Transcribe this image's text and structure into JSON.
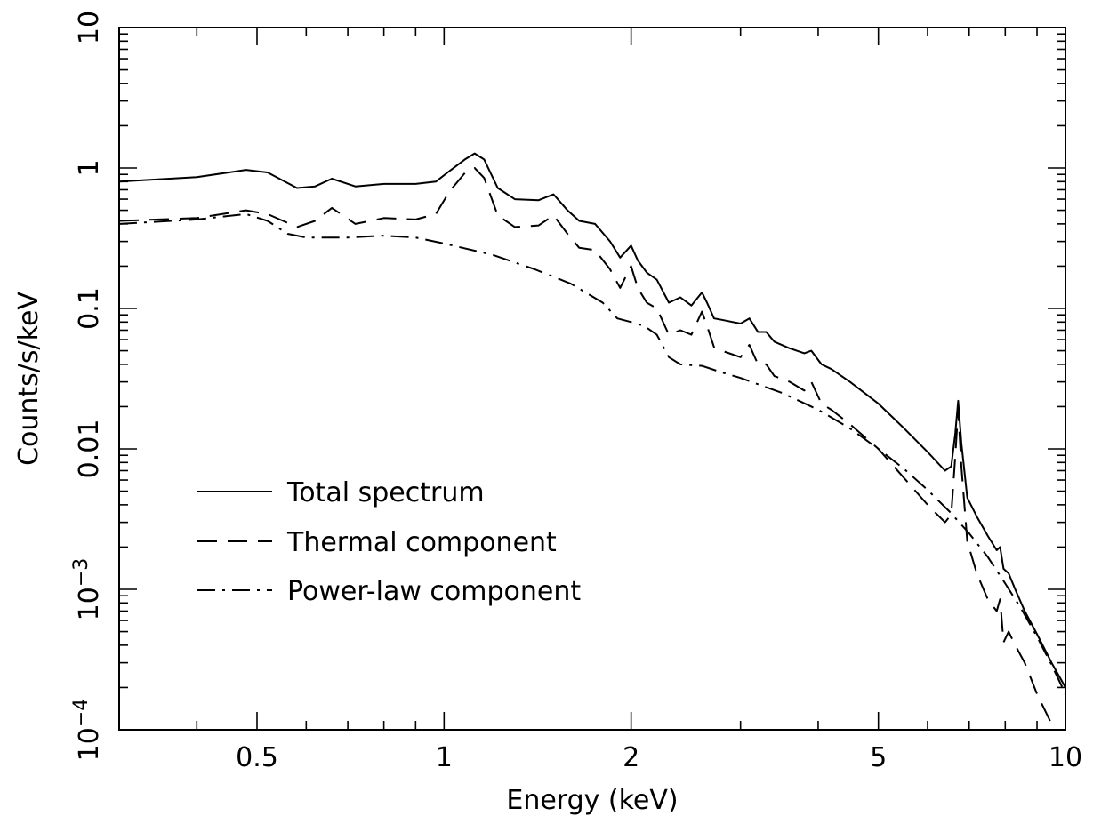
{
  "chart_data": {
    "type": "line",
    "title": "",
    "xlabel": "Energy (keV)",
    "ylabel": "Counts/s/keV",
    "xscale": "log",
    "yscale": "log",
    "xlim": [
      0.3,
      10
    ],
    "ylim": [
      0.0001,
      10
    ],
    "grid": false,
    "legend_position": "lower-left",
    "x_ticks": [
      {
        "value": 0.5,
        "label": "0.5"
      },
      {
        "value": 1,
        "label": "1"
      },
      {
        "value": 2,
        "label": "2"
      },
      {
        "value": 5,
        "label": "5"
      },
      {
        "value": 10,
        "label": "10"
      }
    ],
    "y_ticks": [
      {
        "value": 10,
        "label": "10"
      },
      {
        "value": 1,
        "label": "1"
      },
      {
        "value": 0.1,
        "label": "0.1"
      },
      {
        "value": 0.01,
        "label": "0.01"
      },
      {
        "value": 0.001,
        "base": "10",
        "exp": "−3"
      },
      {
        "value": 0.0001,
        "base": "10",
        "exp": "−4"
      }
    ],
    "series": [
      {
        "name": "Total spectrum",
        "style": "solid",
        "x": [
          0.3,
          0.4,
          0.48,
          0.52,
          0.58,
          0.62,
          0.66,
          0.72,
          0.8,
          0.9,
          0.97,
          1.02,
          1.08,
          1.12,
          1.16,
          1.22,
          1.3,
          1.42,
          1.5,
          1.58,
          1.65,
          1.75,
          1.85,
          1.92,
          2.0,
          2.05,
          2.12,
          2.2,
          2.3,
          2.4,
          2.5,
          2.6,
          2.65,
          2.72,
          2.8,
          3.0,
          3.1,
          3.2,
          3.3,
          3.4,
          3.6,
          3.8,
          3.9,
          4.05,
          4.2,
          4.5,
          5.0,
          5.5,
          6.0,
          6.4,
          6.55,
          6.65,
          6.72,
          6.8,
          6.95,
          7.2,
          7.5,
          7.75,
          7.85,
          7.95,
          8.1,
          8.3,
          8.6,
          9.0,
          9.5,
          10.0
        ],
        "y": [
          0.8,
          0.86,
          0.97,
          0.93,
          0.72,
          0.74,
          0.84,
          0.74,
          0.77,
          0.77,
          0.8,
          0.95,
          1.15,
          1.27,
          1.15,
          0.72,
          0.6,
          0.59,
          0.65,
          0.5,
          0.42,
          0.4,
          0.3,
          0.23,
          0.28,
          0.22,
          0.18,
          0.16,
          0.11,
          0.12,
          0.105,
          0.13,
          0.11,
          0.085,
          0.083,
          0.078,
          0.085,
          0.068,
          0.068,
          0.058,
          0.052,
          0.048,
          0.05,
          0.04,
          0.037,
          0.03,
          0.021,
          0.014,
          0.0095,
          0.007,
          0.0075,
          0.013,
          0.022,
          0.011,
          0.0045,
          0.0033,
          0.0024,
          0.0019,
          0.002,
          0.0014,
          0.0013,
          0.001,
          0.0007,
          0.00048,
          0.0003,
          0.0002
        ]
      },
      {
        "name": "Thermal component",
        "style": "dashed",
        "x": [
          0.3,
          0.4,
          0.48,
          0.52,
          0.58,
          0.62,
          0.66,
          0.72,
          0.8,
          0.9,
          0.97,
          1.02,
          1.08,
          1.12,
          1.16,
          1.22,
          1.3,
          1.42,
          1.5,
          1.58,
          1.65,
          1.75,
          1.85,
          1.92,
          2.0,
          2.05,
          2.12,
          2.2,
          2.3,
          2.4,
          2.5,
          2.6,
          2.65,
          2.72,
          2.8,
          3.0,
          3.1,
          3.2,
          3.3,
          3.4,
          3.6,
          3.8,
          3.9,
          4.05,
          4.2,
          4.5,
          5.0,
          5.5,
          6.0,
          6.4,
          6.55,
          6.65,
          6.72,
          6.8,
          6.95,
          7.2,
          7.5,
          7.75,
          7.85,
          7.95,
          8.1,
          8.3,
          8.6,
          9.0,
          9.5,
          10.0
        ],
        "y": [
          0.42,
          0.44,
          0.5,
          0.47,
          0.38,
          0.42,
          0.52,
          0.4,
          0.44,
          0.43,
          0.47,
          0.68,
          0.92,
          1.0,
          0.85,
          0.46,
          0.38,
          0.39,
          0.46,
          0.34,
          0.27,
          0.26,
          0.19,
          0.14,
          0.2,
          0.14,
          0.11,
          0.1,
          0.065,
          0.07,
          0.065,
          0.095,
          0.075,
          0.053,
          0.05,
          0.045,
          0.055,
          0.04,
          0.04,
          0.033,
          0.03,
          0.026,
          0.03,
          0.021,
          0.019,
          0.015,
          0.01,
          0.0062,
          0.004,
          0.003,
          0.0034,
          0.009,
          0.019,
          0.0075,
          0.0022,
          0.0013,
          0.00085,
          0.0007,
          0.00085,
          0.00042,
          0.0005,
          0.0004,
          0.0003,
          0.00018,
          0.00011,
          7e-05
        ]
      },
      {
        "name": "Power-law component",
        "style": "dash-dot",
        "x": [
          0.3,
          0.4,
          0.48,
          0.52,
          0.56,
          0.6,
          0.7,
          0.8,
          0.9,
          1.0,
          1.2,
          1.4,
          1.6,
          1.8,
          1.9,
          2.0,
          2.1,
          2.2,
          2.3,
          2.4,
          2.6,
          2.8,
          3.0,
          3.5,
          4.0,
          4.5,
          5.0,
          5.5,
          6.0,
          6.5,
          7.0,
          7.5,
          8.0,
          8.5,
          9.0,
          9.5,
          10.0
        ],
        "y": [
          0.4,
          0.43,
          0.47,
          0.42,
          0.34,
          0.32,
          0.32,
          0.33,
          0.32,
          0.29,
          0.24,
          0.19,
          0.15,
          0.11,
          0.085,
          0.08,
          0.075,
          0.065,
          0.045,
          0.04,
          0.039,
          0.035,
          0.032,
          0.025,
          0.019,
          0.014,
          0.01,
          0.0072,
          0.0051,
          0.0036,
          0.0025,
          0.0017,
          0.0011,
          0.00072,
          0.00046,
          0.00029,
          0.00018
        ]
      }
    ]
  }
}
